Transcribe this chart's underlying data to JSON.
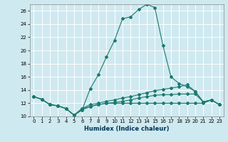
{
  "title": "",
  "xlabel": "Humidex (Indice chaleur)",
  "bg_color": "#cfe9f0",
  "grid_color": "#ffffff",
  "line_color": "#1a7a6e",
  "xlim": [
    -0.5,
    23.5
  ],
  "ylim": [
    10,
    27
  ],
  "yticks": [
    10,
    12,
    14,
    16,
    18,
    20,
    22,
    24,
    26
  ],
  "xticks": [
    0,
    1,
    2,
    3,
    4,
    5,
    6,
    7,
    8,
    9,
    10,
    11,
    12,
    13,
    14,
    15,
    16,
    17,
    18,
    19,
    20,
    21,
    22,
    23
  ],
  "xlabel_fontsize": 6.0,
  "tick_fontsize": 5.0,
  "series": [
    {
      "x": [
        0,
        1,
        2,
        3,
        4,
        5,
        6,
        7,
        8,
        9,
        10,
        11,
        12,
        13,
        14,
        15,
        16,
        17,
        18,
        19,
        20,
        21,
        22,
        23
      ],
      "y": [
        13.0,
        12.6,
        11.8,
        11.6,
        11.2,
        10.2,
        11.0,
        14.2,
        16.3,
        19.0,
        21.5,
        24.8,
        25.1,
        26.2,
        27.0,
        26.5,
        20.8,
        16.0,
        15.0,
        14.5,
        13.8,
        12.2,
        12.5,
        11.8
      ]
    },
    {
      "x": [
        0,
        1,
        2,
        3,
        4,
        5,
        6,
        7,
        8,
        9,
        10,
        11,
        12,
        13,
        14,
        15,
        16,
        17,
        18,
        19,
        20,
        21,
        22,
        23
      ],
      "y": [
        13.0,
        12.6,
        11.8,
        11.6,
        11.2,
        10.2,
        11.2,
        11.8,
        12.0,
        12.3,
        12.5,
        12.8,
        13.0,
        13.3,
        13.6,
        13.9,
        14.1,
        14.3,
        14.5,
        14.8,
        13.8,
        12.2,
        12.5,
        11.8
      ]
    },
    {
      "x": [
        0,
        1,
        2,
        3,
        4,
        5,
        6,
        7,
        8,
        9,
        10,
        11,
        12,
        13,
        14,
        15,
        16,
        17,
        18,
        19,
        20,
        21,
        22,
        23
      ],
      "y": [
        13.0,
        12.6,
        11.8,
        11.6,
        11.2,
        10.2,
        11.0,
        11.5,
        11.8,
        12.0,
        12.1,
        12.3,
        12.5,
        12.8,
        13.0,
        13.2,
        13.3,
        13.3,
        13.4,
        13.4,
        13.4,
        12.2,
        12.5,
        11.8
      ]
    },
    {
      "x": [
        0,
        1,
        2,
        3,
        4,
        5,
        6,
        7,
        8,
        9,
        10,
        11,
        12,
        13,
        14,
        15,
        16,
        17,
        18,
        19,
        20,
        21,
        22,
        23
      ],
      "y": [
        13.0,
        12.6,
        11.8,
        11.6,
        11.2,
        10.2,
        11.2,
        11.5,
        11.8,
        12.0,
        12.0,
        12.0,
        12.0,
        12.0,
        12.0,
        12.0,
        12.0,
        12.0,
        12.0,
        12.0,
        12.0,
        12.0,
        12.5,
        11.8
      ]
    }
  ]
}
